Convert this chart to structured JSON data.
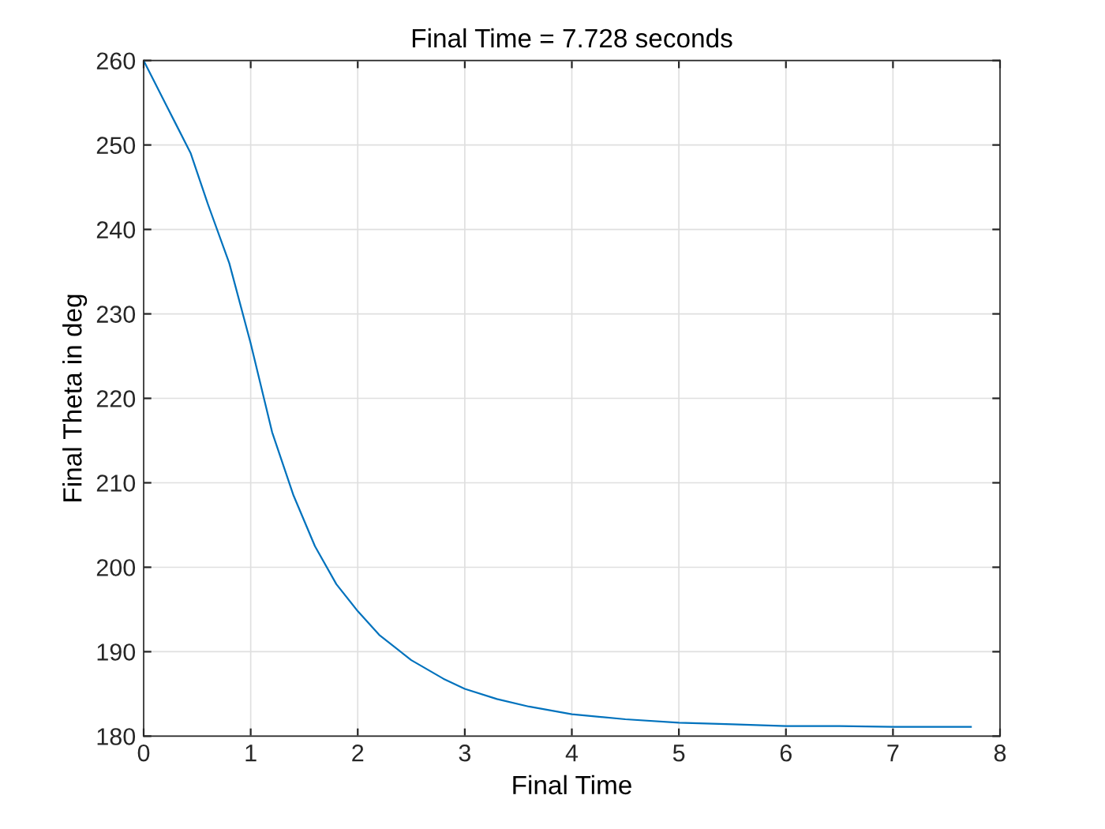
{
  "chart_data": {
    "type": "line",
    "title": "Final Time = 7.728 seconds",
    "xlabel": "Final Time",
    "ylabel": "Final Theta in deg",
    "x": [
      0,
      0.1,
      0.2,
      0.3,
      0.44,
      0.6,
      0.8,
      1.0,
      1.2,
      1.4,
      1.6,
      1.8,
      2.0,
      2.2,
      2.5,
      2.8,
      3.0,
      3.3,
      3.6,
      4.0,
      4.5,
      5.0,
      5.5,
      6.0,
      6.5,
      7.0,
      7.728
    ],
    "series": [
      {
        "color": "#0072bd",
        "values": [
          260,
          257.5,
          255,
          252.5,
          249,
          243,
          236,
          226.5,
          216,
          208.5,
          202.5,
          198,
          194.8,
          192,
          189,
          186.8,
          185.6,
          184.4,
          183.5,
          182.6,
          182,
          181.6,
          181.4,
          181.2,
          181.2,
          181.1,
          181.1
        ]
      }
    ],
    "xlim": [
      0,
      8
    ],
    "ylim": [
      180,
      260
    ],
    "xticks": [
      0,
      1,
      2,
      3,
      4,
      5,
      6,
      7,
      8
    ],
    "yticks": [
      180,
      190,
      200,
      210,
      220,
      230,
      240,
      250,
      260
    ],
    "grid": true,
    "line_style": "solid",
    "marker": "none"
  }
}
